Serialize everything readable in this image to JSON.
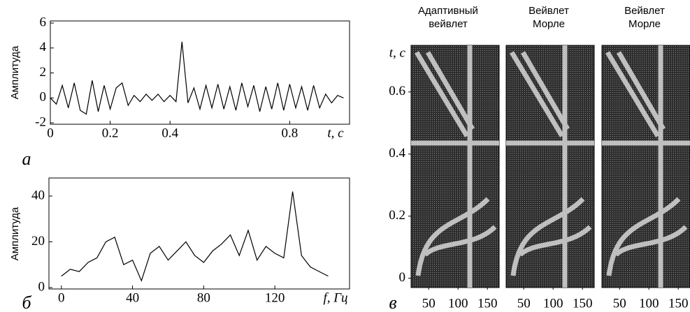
{
  "chart_data": [
    {
      "type": "line",
      "label": "а",
      "ylabel": "Амплитуда",
      "xlabel": "t, с",
      "color": "#000000",
      "xlim": [
        0,
        1.0
      ],
      "ylim": [
        -2,
        6
      ],
      "xticks": [
        0,
        0.2,
        0.4,
        0.8
      ],
      "yticks": [
        -2,
        0,
        2,
        4,
        6
      ],
      "x": [
        0,
        0.02,
        0.04,
        0.06,
        0.08,
        0.1,
        0.12,
        0.14,
        0.16,
        0.18,
        0.2,
        0.22,
        0.24,
        0.26,
        0.28,
        0.3,
        0.32,
        0.34,
        0.36,
        0.38,
        0.4,
        0.42,
        0.44,
        0.46,
        0.48,
        0.5,
        0.52,
        0.54,
        0.56,
        0.58,
        0.6,
        0.62,
        0.64,
        0.66,
        0.68,
        0.7,
        0.72,
        0.74,
        0.76,
        0.78,
        0.8,
        0.82,
        0.84,
        0.86,
        0.88,
        0.9,
        0.92,
        0.94,
        0.96,
        0.98
      ],
      "values": [
        0,
        -0.5,
        1.0,
        -0.8,
        1.2,
        -1.0,
        -1.3,
        1.4,
        -1.1,
        1.0,
        -0.9,
        0.8,
        1.2,
        -0.6,
        0.2,
        -0.3,
        0.3,
        -0.2,
        0.3,
        -0.3,
        0.2,
        -0.3,
        4.5,
        -0.4,
        0.8,
        -0.9,
        1.0,
        -0.8,
        1.1,
        -0.9,
        0.9,
        -1.0,
        1.2,
        -0.7,
        1.0,
        -1.1,
        0.9,
        -0.9,
        1.2,
        -1.0,
        1.1,
        -0.8,
        0.9,
        -1.0,
        1.0,
        -0.8,
        0.3,
        -0.4,
        0.2,
        0.0
      ]
    },
    {
      "type": "line",
      "label": "б",
      "ylabel": "Амплитуда",
      "xlabel": "f, Гц",
      "color": "#000000",
      "xlim": [
        -7,
        162
      ],
      "ylim": [
        0,
        47
      ],
      "xticks": [
        0,
        40,
        80,
        120
      ],
      "yticks": [
        0,
        20,
        40
      ],
      "x": [
        0,
        5,
        10,
        15,
        20,
        25,
        30,
        35,
        40,
        45,
        50,
        55,
        60,
        65,
        70,
        75,
        80,
        85,
        90,
        95,
        100,
        105,
        110,
        115,
        120,
        125,
        130,
        135,
        140,
        145,
        150
      ],
      "values": [
        5,
        8,
        7,
        11,
        13,
        20,
        22,
        10,
        12,
        3,
        15,
        18,
        12,
        16,
        20,
        14,
        11,
        16,
        19,
        23,
        14,
        25,
        12,
        18,
        15,
        13,
        42,
        14,
        9,
        7,
        5
      ]
    },
    {
      "type": "scalogram",
      "label": "в",
      "ylabel": "t, с",
      "xlim": [
        20,
        170
      ],
      "ylim": [
        -0.03,
        0.75
      ],
      "xticks": [
        50,
        100,
        150
      ],
      "yticks": [
        0,
        0.2,
        0.4,
        0.6
      ],
      "panels": [
        {
          "title": [
            "Адаптивный",
            "вейвлет"
          ]
        },
        {
          "title": [
            "Вейвлет",
            "Морле"
          ]
        },
        {
          "title": [
            "Вейвлет",
            "Морле"
          ]
        }
      ]
    }
  ]
}
